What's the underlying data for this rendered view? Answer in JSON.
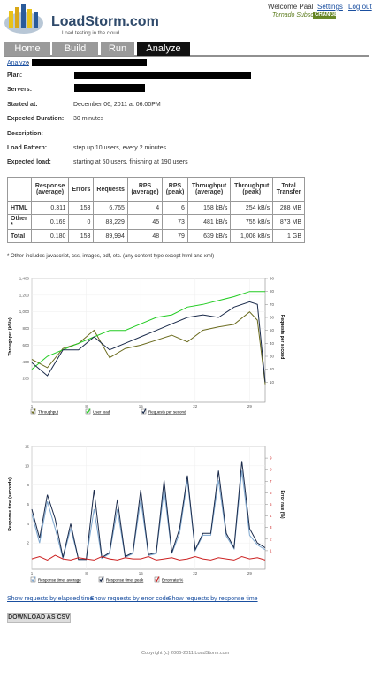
{
  "header": {
    "logo": "LoadStorm.com",
    "tagline": "Load testing in the cloud",
    "welcome": "Welcome Paal",
    "links": [
      "Settings",
      "Log out"
    ],
    "subscription": "Tornado Subscription",
    "change": "CHANGE"
  },
  "tabs": [
    "Home",
    "Build",
    "Run",
    "Analyze"
  ],
  "breadcrumb": "Analyze",
  "details": [
    {
      "label": "Plan:"
    },
    {
      "label": "Servers:"
    },
    {
      "label": "Started at:",
      "value": "December 06, 2011 at 06:00PM"
    },
    {
      "label": "Expected Duration:",
      "value": "30 minutes"
    },
    {
      "label": "Description:"
    },
    {
      "label": "Load Pattern:",
      "value": "step up 10 users, every 2 minutes"
    },
    {
      "label": "Expected load:",
      "value": "starting at 50 users, finishing at 190 users"
    }
  ],
  "table": {
    "columns": [
      "Response (average)",
      "Errors",
      "Requests",
      "RPS (average)",
      "RPS (peak)",
      "Throughput (average)",
      "Throughput (peak)",
      "Total Transfer"
    ],
    "rows": [
      {
        "label": "HTML",
        "cells": [
          "0.311",
          "153",
          "6,765",
          "4",
          "6",
          "158 kB/s",
          "254 kB/s",
          "288 MB"
        ]
      },
      {
        "label": "Other *",
        "cells": [
          "0.169",
          "0",
          "83,229",
          "45",
          "73",
          "481 kB/s",
          "755 kB/s",
          "873 MB"
        ]
      },
      {
        "label": "Total",
        "cells": [
          "0.180",
          "153",
          "89,994",
          "48",
          "79",
          "639 kB/s",
          "1,008 kB/s",
          "1 GB"
        ]
      }
    ]
  },
  "footnote": "* Other includes javascript, css, images, pdf, etc. (any content type except html and xml)",
  "chart_data": [
    {
      "type": "line",
      "y_label": "Throughput (kB/s)",
      "y2_label": "Requests per second",
      "grid": true,
      "x": [
        1,
        3,
        5,
        7,
        9,
        11,
        13,
        15,
        17,
        19,
        21,
        23,
        25,
        27,
        29,
        30,
        31
      ],
      "xlim": [
        1,
        31
      ],
      "xticks": [
        1,
        8,
        15,
        22,
        29
      ],
      "ylim": [
        0,
        1400
      ],
      "yticks": [
        200,
        400,
        600,
        800,
        {
          "value": 1000,
          "label": "1,000"
        },
        {
          "value": 1200,
          "label": "1,200"
        },
        {
          "value": 1400,
          "label": "1,400"
        }
      ],
      "y2lim": [
        0,
        90
      ],
      "y2ticks": [
        10,
        20,
        30,
        40,
        50,
        60,
        70,
        80,
        90
      ],
      "series": [
        {
          "name": "Throughput",
          "color": "#6b6b1e",
          "values": [
            430,
            330,
            560,
            620,
            780,
            450,
            560,
            600,
            660,
            720,
            640,
            780,
            820,
            850,
            1000,
            900,
            130
          ]
        },
        {
          "name": "User load",
          "color": "#22cc22",
          "axis": "y2",
          "values": [
            20,
            30,
            35,
            40,
            45,
            50,
            50,
            55,
            60,
            62,
            68,
            70,
            73,
            76,
            80,
            80,
            80
          ]
        },
        {
          "name": "Requests per second",
          "color": "#1a2a4a",
          "axis": "y2",
          "values": [
            25,
            15,
            35,
            35,
            45,
            35,
            40,
            45,
            50,
            55,
            60,
            62,
            60,
            68,
            72,
            70,
            10
          ]
        }
      ]
    },
    {
      "type": "line",
      "y_label": "Response time (seconds)",
      "y2_label": "Error rate (%)",
      "grid": true,
      "x": [
        1,
        2,
        3,
        4,
        5,
        6,
        7,
        8,
        9,
        10,
        11,
        12,
        13,
        14,
        15,
        16,
        17,
        18,
        19,
        20,
        21,
        22,
        23,
        24,
        25,
        26,
        27,
        28,
        29,
        30,
        31
      ],
      "xlim": [
        1,
        31
      ],
      "xticks": [
        1,
        8,
        15,
        22,
        29
      ],
      "ylim": [
        0,
        12
      ],
      "yticks": [
        2,
        4,
        6,
        8,
        10,
        12
      ],
      "y2lim": [
        0,
        10
      ],
      "y2ticks": [
        1,
        2,
        3,
        4,
        5,
        6,
        7,
        8,
        9
      ],
      "series": [
        {
          "name": "Response time: average",
          "color": "#7fa8d0",
          "values": [
            5,
            2,
            6.3,
            3.5,
            0.4,
            3.5,
            0.3,
            0.3,
            5.5,
            0.4,
            0.9,
            5.5,
            0.5,
            0.9,
            6.5,
            0.7,
            0.9,
            7.5,
            0.9,
            3,
            8.5,
            1.2,
            2.8,
            2.8,
            8.5,
            2.7,
            1.4,
            9.5,
            2.8,
            1.8,
            1.3
          ]
        },
        {
          "name": "Response time: peak",
          "color": "#1a2a4a",
          "values": [
            5.5,
            2.5,
            7,
            4.5,
            0.5,
            4,
            0.3,
            0.3,
            7.5,
            0.5,
            1,
            6.5,
            0.6,
            1,
            7.5,
            0.8,
            1,
            8.5,
            1,
            3.5,
            9,
            1.3,
            3,
            3,
            9.5,
            3,
            1.5,
            10.5,
            3.5,
            2,
            1.5
          ]
        },
        {
          "name": "Error rate %",
          "color": "#cc2222",
          "axis": "y2",
          "values": [
            0.3,
            0.5,
            0.2,
            0.6,
            0.3,
            0.2,
            0.4,
            0.3,
            0.2,
            0.5,
            0.3,
            0.2,
            0.4,
            0.3,
            0.3,
            0.5,
            0.2,
            0.3,
            0.4,
            0.2,
            0.3,
            0.5,
            0.3,
            0.2,
            0.4,
            0.3,
            0.2,
            0.5,
            0.3,
            0.4,
            0.2
          ]
        }
      ]
    }
  ],
  "links": [
    "Show requests by elapsed time",
    "Show requests by error code",
    "Show requests by response time"
  ],
  "button": "DOWNLOAD AS CSV",
  "copyright": "Copyright (c) 2006-2011 LoadStorm.com"
}
